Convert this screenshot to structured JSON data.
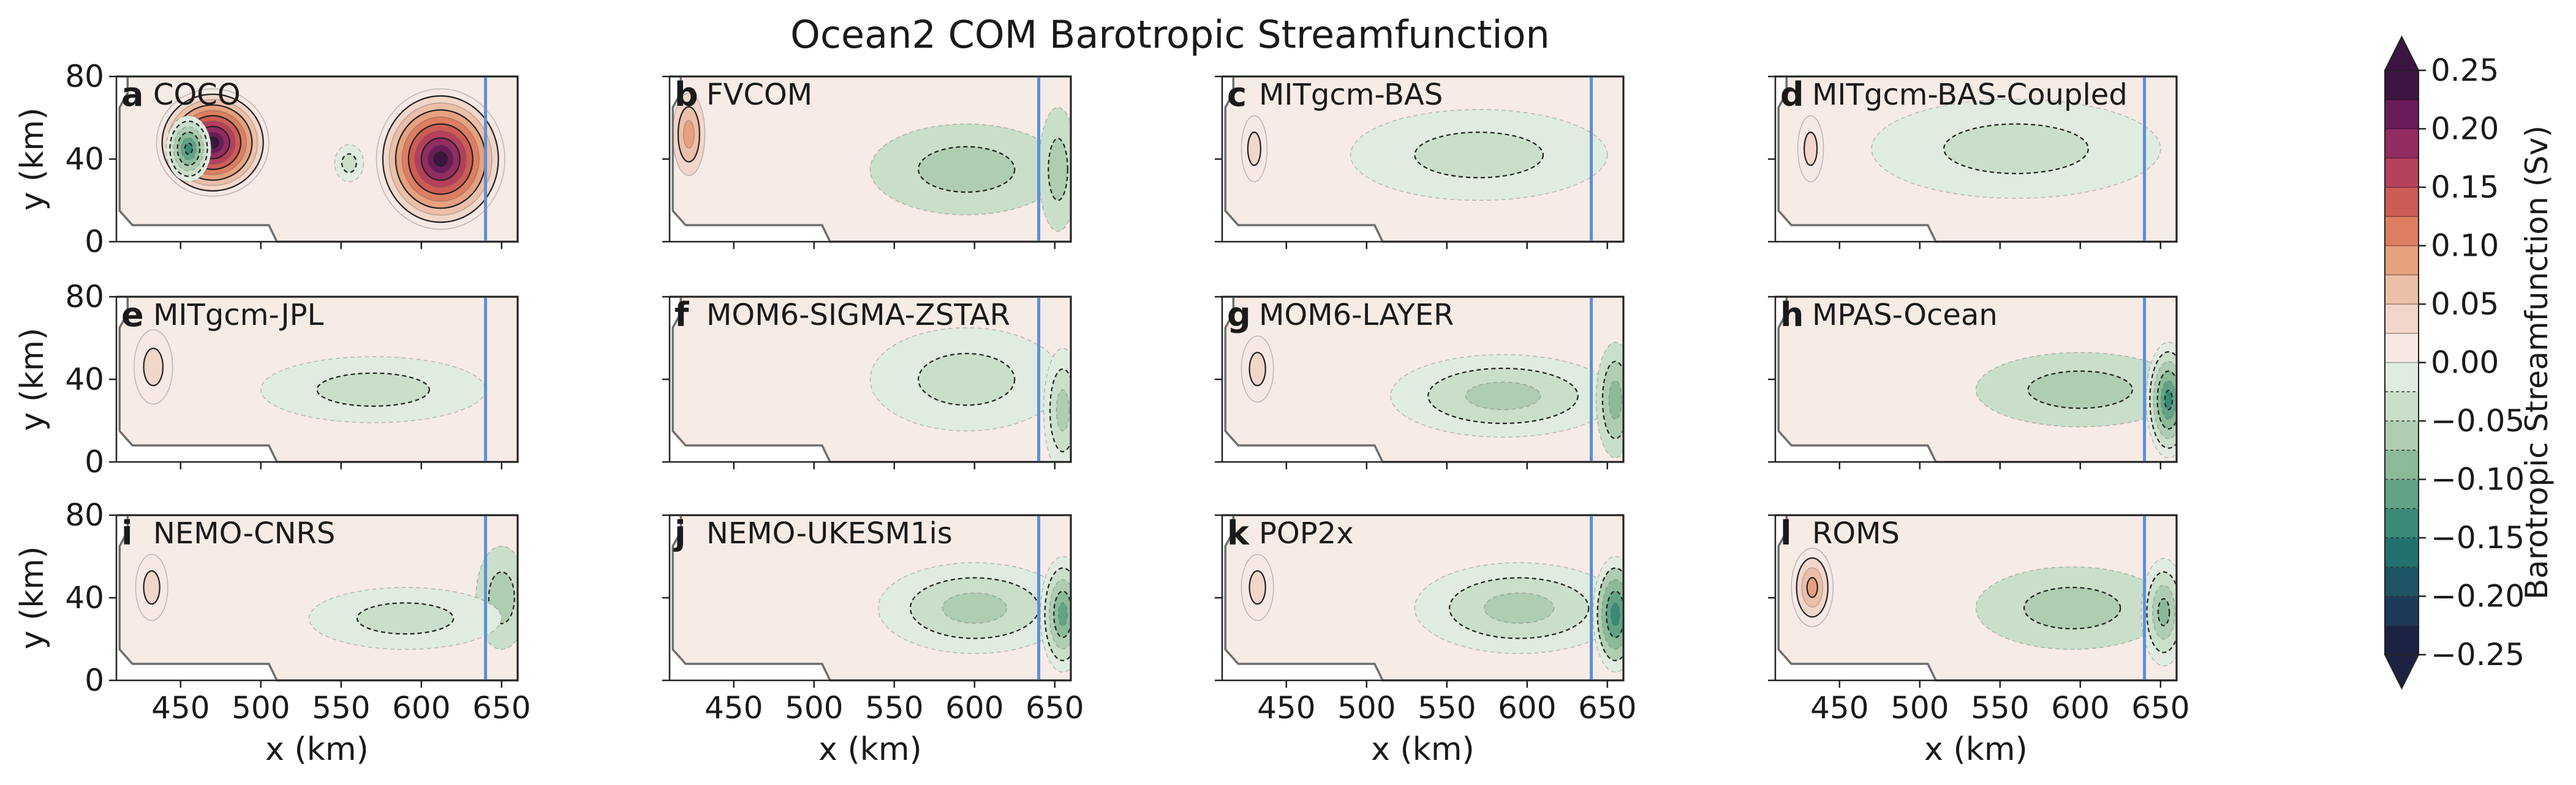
{
  "title": "Ocean2 COM Barotropic Streamfunction",
  "chart_data": {
    "type": "contour",
    "title": "Ocean2 COM Barotropic Streamfunction",
    "xlabel": "x (km)",
    "ylabel": "y (km)",
    "xlim": [
      410,
      660
    ],
    "ylim": [
      0,
      80
    ],
    "xticks": [
      450,
      500,
      550,
      600,
      650
    ],
    "yticks": [
      0,
      40,
      80
    ],
    "grounding_line_x": 640,
    "colorbar": {
      "label": "Barotropic Streamfunction (Sv)",
      "range": [
        -0.25,
        0.25
      ],
      "ticks": [
        "0.25",
        "0.20",
        "0.15",
        "0.10",
        "0.05",
        "0.00",
        "−0.05",
        "−0.10",
        "−0.15",
        "−0.20",
        "−0.25"
      ],
      "levels": [
        -0.25,
        -0.225,
        -0.2,
        -0.175,
        -0.15,
        -0.125,
        -0.1,
        -0.075,
        -0.05,
        -0.025,
        0.0,
        0.025,
        0.05,
        0.075,
        0.1,
        0.125,
        0.15,
        0.175,
        0.2,
        0.225,
        0.25
      ],
      "neg_colors": [
        "#1c2244",
        "#1d3a5a",
        "#1e5465",
        "#21716e",
        "#3a8a78",
        "#62a386",
        "#8bba99",
        "#afcdb1",
        "#cadfc9",
        "#e1ece0"
      ],
      "pos_colors": [
        "#f6e9e3",
        "#f1d6c9",
        "#ecbfa8",
        "#e6a17f",
        "#dd7e62",
        "#cd5c55",
        "#b5405c",
        "#932c60",
        "#6a1c58",
        "#3d1542"
      ],
      "extend": "both"
    },
    "panels": [
      {
        "letter": "a",
        "name": "COCO",
        "interior_level": 1.0,
        "blobs": [
          {
            "x": 470,
            "y": 48,
            "rx": 35,
            "ry": 26,
            "v": 0.25
          },
          {
            "x": 455,
            "y": 45,
            "rx": 14,
            "ry": 16,
            "v": -0.15
          },
          {
            "x": 612,
            "y": 40,
            "rx": 40,
            "ry": 34,
            "v": 0.25
          },
          {
            "x": 555,
            "y": 38,
            "rx": 9,
            "ry": 9,
            "v": -0.03
          }
        ]
      },
      {
        "letter": "b",
        "name": "FVCOM",
        "interior_level": 0.25,
        "blobs": [
          {
            "x": 422,
            "y": 52,
            "rx": 10,
            "ry": 20,
            "v": 0.08
          },
          {
            "x": 595,
            "y": 35,
            "rx": 60,
            "ry": 22,
            "v": -0.06
          },
          {
            "x": 652,
            "y": 35,
            "rx": 12,
            "ry": 30,
            "v": -0.06
          }
        ]
      },
      {
        "letter": "c",
        "name": "MITgcm-BAS",
        "interior_level": 0.25,
        "blobs": [
          {
            "x": 430,
            "y": 45,
            "rx": 8,
            "ry": 16,
            "v": 0.03
          },
          {
            "x": 570,
            "y": 42,
            "rx": 80,
            "ry": 22,
            "v": -0.04
          }
        ]
      },
      {
        "letter": "d",
        "name": "MITgcm-BAS-Coupled",
        "interior_level": 0.25,
        "blobs": [
          {
            "x": 432,
            "y": 45,
            "rx": 8,
            "ry": 16,
            "v": 0.04
          },
          {
            "x": 560,
            "y": 45,
            "rx": 90,
            "ry": 24,
            "v": -0.03
          }
        ]
      },
      {
        "letter": "e",
        "name": "MITgcm-JPL",
        "interior_level": 0.25,
        "blobs": [
          {
            "x": 433,
            "y": 46,
            "rx": 12,
            "ry": 18,
            "v": 0.05
          },
          {
            "x": 570,
            "y": 35,
            "rx": 70,
            "ry": 16,
            "v": -0.03
          }
        ]
      },
      {
        "letter": "f",
        "name": "MOM6-SIGMA-ZSTAR",
        "interior_level": 0.25,
        "blobs": [
          {
            "x": 595,
            "y": 40,
            "rx": 60,
            "ry": 25,
            "v": -0.04
          },
          {
            "x": 655,
            "y": 25,
            "rx": 12,
            "ry": 30,
            "v": -0.07
          }
        ]
      },
      {
        "letter": "g",
        "name": "MOM6-LAYER",
        "interior_level": 0.25,
        "blobs": [
          {
            "x": 432,
            "y": 45,
            "rx": 10,
            "ry": 16,
            "v": 0.05
          },
          {
            "x": 585,
            "y": 32,
            "rx": 70,
            "ry": 20,
            "v": -0.07
          },
          {
            "x": 655,
            "y": 30,
            "rx": 12,
            "ry": 28,
            "v": -0.08
          }
        ]
      },
      {
        "letter": "h",
        "name": "MPAS-Ocean",
        "interior_level": 0.25,
        "blobs": [
          {
            "x": 600,
            "y": 35,
            "rx": 65,
            "ry": 18,
            "v": -0.06
          },
          {
            "x": 655,
            "y": 30,
            "rx": 14,
            "ry": 28,
            "v": -0.14
          }
        ]
      },
      {
        "letter": "i",
        "name": "NEMO-CNRS",
        "interior_level": 0.25,
        "blobs": [
          {
            "x": 432,
            "y": 45,
            "rx": 10,
            "ry": 16,
            "v": 0.03
          },
          {
            "x": 650,
            "y": 40,
            "rx": 16,
            "ry": 25,
            "v": -0.06
          },
          {
            "x": 590,
            "y": 30,
            "rx": 60,
            "ry": 15,
            "v": -0.03
          }
        ]
      },
      {
        "letter": "j",
        "name": "NEMO-UKESM1is",
        "interior_level": 0.25,
        "blobs": [
          {
            "x": 600,
            "y": 35,
            "rx": 60,
            "ry": 22,
            "v": -0.07
          },
          {
            "x": 655,
            "y": 32,
            "rx": 14,
            "ry": 28,
            "v": -0.12
          }
        ]
      },
      {
        "letter": "k",
        "name": "POP2x",
        "interior_level": 0.25,
        "blobs": [
          {
            "x": 432,
            "y": 45,
            "rx": 10,
            "ry": 16,
            "v": 0.04
          },
          {
            "x": 595,
            "y": 35,
            "rx": 65,
            "ry": 22,
            "v": -0.07
          },
          {
            "x": 655,
            "y": 32,
            "rx": 14,
            "ry": 28,
            "v": -0.13
          }
        ]
      },
      {
        "letter": "l",
        "name": "ROMS",
        "interior_level": 0.25,
        "blobs": [
          {
            "x": 433,
            "y": 45,
            "rx": 13,
            "ry": 19,
            "v": 0.1
          },
          {
            "x": 595,
            "y": 35,
            "rx": 60,
            "ry": 20,
            "v": -0.06
          },
          {
            "x": 652,
            "y": 33,
            "rx": 14,
            "ry": 26,
            "v": -0.1
          }
        ]
      }
    ]
  }
}
